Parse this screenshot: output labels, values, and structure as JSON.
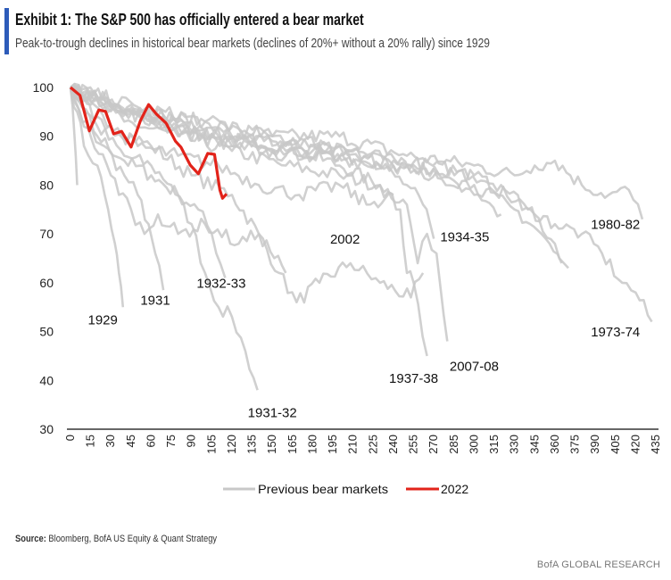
{
  "header": {
    "title": "Exhibit 1: The S&P 500 has officially entered a bear market",
    "subtitle": "Peak-to-trough declines in historical bear markets (declines of 20%+ without a 20% rally) since 1929"
  },
  "footer": {
    "source_label": "Source:",
    "source_text": " Bloomberg, BofA US Equity & Quant Strategy",
    "brand": "BofA GLOBAL RESEARCH"
  },
  "colors": {
    "accent": "#2d5bb9",
    "previous": "#c8c8c8",
    "current": "#e2231a",
    "axis": "#666666"
  },
  "chart_data": {
    "type": "line",
    "title": "Exhibit 1: The S&P 500 has officially entered a bear market",
    "xlabel": "",
    "ylabel": "",
    "xlim": [
      0,
      435
    ],
    "ylim": [
      30,
      100
    ],
    "x_ticks": [
      "0",
      "15",
      "30",
      "45",
      "60",
      "75",
      "90",
      "105",
      "120",
      "135",
      "150",
      "165",
      "180",
      "195",
      "210",
      "225",
      "240",
      "255",
      "270",
      "285",
      "300",
      "315",
      "330",
      "345",
      "360",
      "375",
      "390",
      "405",
      "420",
      "435"
    ],
    "y_ticks": [
      "30",
      "40",
      "50",
      "60",
      "70",
      "80",
      "90",
      "100"
    ],
    "grid": false,
    "legend": {
      "position": "bottom",
      "entries": [
        {
          "label": "Previous bear markets",
          "color": "#c8c8c8"
        },
        {
          "label": "2022",
          "color": "#e2231a"
        }
      ]
    },
    "series": [
      {
        "name": "1929",
        "group": "previous",
        "label": "1929",
        "label_at": [
          24,
          51.5
        ],
        "points": [
          [
            0,
            100
          ],
          [
            5,
            95
          ],
          [
            10,
            88
          ],
          [
            20,
            84
          ],
          [
            28,
            75
          ],
          [
            33,
            68
          ],
          [
            36,
            62
          ],
          [
            39,
            55
          ]
        ]
      },
      {
        "name": "1931",
        "group": "previous",
        "label": "1931",
        "label_at": [
          63,
          55.5
        ],
        "points": [
          [
            0,
            100
          ],
          [
            10,
            92
          ],
          [
            25,
            88
          ],
          [
            40,
            82
          ],
          [
            50,
            78
          ],
          [
            58,
            72
          ],
          [
            63,
            66
          ],
          [
            69,
            58.5
          ]
        ]
      },
      {
        "name": "1932-33",
        "group": "previous",
        "label": "1932-33",
        "label_at": [
          112,
          59
        ],
        "points": [
          [
            0,
            100
          ],
          [
            20,
            90
          ],
          [
            40,
            85
          ],
          [
            60,
            82
          ],
          [
            80,
            78
          ],
          [
            95,
            75
          ],
          [
            105,
            70
          ],
          [
            115,
            61
          ]
        ]
      },
      {
        "name": "1931-32",
        "group": "previous",
        "label": "1931-32",
        "label_at": [
          150,
          32.5
        ],
        "points": [
          [
            0,
            100
          ],
          [
            20,
            92
          ],
          [
            40,
            86
          ],
          [
            60,
            84
          ],
          [
            75,
            80
          ],
          [
            90,
            72
          ],
          [
            100,
            62
          ],
          [
            110,
            55
          ],
          [
            120,
            53
          ],
          [
            130,
            46
          ],
          [
            139,
            38
          ]
        ]
      },
      {
        "name": "2002",
        "group": "previous",
        "label": "2002",
        "label_at": [
          204,
          68
        ],
        "points": [
          [
            0,
            100
          ],
          [
            30,
            92
          ],
          [
            60,
            88
          ],
          [
            90,
            82
          ],
          [
            120,
            78
          ],
          [
            140,
            70
          ],
          [
            155,
            62
          ],
          [
            168,
            56
          ],
          [
            185,
            60
          ],
          [
            208,
            64
          ],
          [
            230,
            60
          ],
          [
            253,
            57
          ],
          [
            262,
            62
          ]
        ]
      },
      {
        "name": "2007-08",
        "group": "previous",
        "label": "2007-08",
        "label_at": [
          300,
          42
        ],
        "points": [
          [
            0,
            100
          ],
          [
            40,
            95
          ],
          [
            80,
            92
          ],
          [
            120,
            90
          ],
          [
            160,
            88
          ],
          [
            200,
            84
          ],
          [
            230,
            80
          ],
          [
            250,
            76
          ],
          [
            258,
            64
          ],
          [
            265,
            70
          ],
          [
            272,
            66
          ],
          [
            280,
            48
          ]
        ]
      },
      {
        "name": "1937-38",
        "group": "previous",
        "label": "1937-38",
        "label_at": [
          255,
          39.5
        ],
        "points": [
          [
            0,
            100
          ],
          [
            40,
            93
          ],
          [
            80,
            90
          ],
          [
            120,
            87
          ],
          [
            160,
            84
          ],
          [
            200,
            82
          ],
          [
            230,
            80
          ],
          [
            245,
            75
          ],
          [
            250,
            62
          ],
          [
            255,
            60
          ],
          [
            265,
            45
          ]
        ]
      },
      {
        "name": "1934-35",
        "group": "previous",
        "label": "1934-35",
        "label_at": [
          293,
          68.5
        ],
        "points": [
          [
            0,
            100
          ],
          [
            40,
            95
          ],
          [
            80,
            92
          ],
          [
            120,
            88
          ],
          [
            160,
            86
          ],
          [
            200,
            88
          ],
          [
            230,
            84
          ],
          [
            250,
            80
          ],
          [
            262,
            76
          ],
          [
            270,
            69
          ]
        ]
      },
      {
        "name": "1980-82",
        "group": "previous",
        "label": "1980-82",
        "label_at": [
          405,
          71
        ],
        "points": [
          [
            0,
            100
          ],
          [
            50,
            95
          ],
          [
            100,
            93
          ],
          [
            150,
            90
          ],
          [
            200,
            90
          ],
          [
            250,
            86
          ],
          [
            300,
            84
          ],
          [
            330,
            82
          ],
          [
            345,
            84
          ],
          [
            360,
            85
          ],
          [
            380,
            80
          ],
          [
            400,
            78
          ],
          [
            415,
            79
          ],
          [
            425,
            73
          ]
        ]
      },
      {
        "name": "1973-74",
        "group": "previous",
        "label": "1973-74",
        "label_at": [
          405,
          49
        ],
        "points": [
          [
            0,
            100
          ],
          [
            50,
            96
          ],
          [
            100,
            93
          ],
          [
            150,
            90
          ],
          [
            200,
            88
          ],
          [
            250,
            84
          ],
          [
            300,
            82
          ],
          [
            340,
            75
          ],
          [
            360,
            72
          ],
          [
            380,
            70
          ],
          [
            395,
            66
          ],
          [
            410,
            60
          ],
          [
            420,
            58
          ],
          [
            432,
            52
          ]
        ]
      },
      {
        "name": "previous-a",
        "group": "previous",
        "points": [
          [
            0,
            100
          ],
          [
            60,
            94
          ],
          [
            120,
            90
          ],
          [
            180,
            88
          ],
          [
            240,
            85
          ],
          [
            290,
            83
          ],
          [
            320,
            80
          ],
          [
            345,
            74
          ],
          [
            360,
            68
          ],
          [
            370,
            63
          ]
        ]
      },
      {
        "name": "previous-b",
        "group": "previous",
        "points": [
          [
            0,
            100
          ],
          [
            80,
            92
          ],
          [
            160,
            87
          ],
          [
            240,
            84
          ],
          [
            300,
            80
          ],
          [
            330,
            75
          ],
          [
            350,
            70
          ],
          [
            365,
            64
          ]
        ]
      },
      {
        "name": "previous-c",
        "group": "previous",
        "points": [
          [
            0,
            100
          ],
          [
            60,
            93
          ],
          [
            120,
            88
          ],
          [
            200,
            86
          ],
          [
            260,
            83
          ],
          [
            300,
            78
          ],
          [
            320,
            74
          ]
        ]
      },
      {
        "name": "previous-d",
        "group": "previous",
        "points": [
          [
            0,
            100
          ],
          [
            3,
            90
          ],
          [
            5,
            80
          ]
        ]
      },
      {
        "name": "previous-e",
        "group": "previous",
        "points": [
          [
            0,
            100
          ],
          [
            15,
            90
          ],
          [
            30,
            82
          ],
          [
            45,
            75
          ],
          [
            55,
            70
          ],
          [
            65,
            74
          ],
          [
            80,
            70
          ],
          [
            100,
            72
          ],
          [
            125,
            68
          ],
          [
            140,
            70
          ],
          [
            160,
            62
          ]
        ]
      },
      {
        "name": "previous-f",
        "group": "previous",
        "points": [
          [
            0,
            100
          ],
          [
            20,
            94
          ],
          [
            50,
            88
          ],
          [
            80,
            86
          ],
          [
            110,
            84
          ],
          [
            140,
            80
          ],
          [
            170,
            78
          ],
          [
            200,
            80
          ],
          [
            220,
            76
          ],
          [
            240,
            78
          ]
        ]
      },
      {
        "name": "previous-g",
        "group": "previous",
        "points": [
          [
            0,
            100
          ],
          [
            30,
            96
          ],
          [
            70,
            94
          ],
          [
            110,
            90
          ],
          [
            150,
            89
          ],
          [
            190,
            87
          ],
          [
            210,
            84
          ]
        ]
      },
      {
        "name": "2022",
        "group": "current",
        "points": [
          [
            0,
            100
          ],
          [
            7,
            98.4
          ],
          [
            14,
            91.1
          ],
          [
            21,
            95.4
          ],
          [
            26,
            95.1
          ],
          [
            32,
            90.5
          ],
          [
            38,
            91
          ],
          [
            45,
            87.8
          ],
          [
            52,
            93.2
          ],
          [
            58,
            96.5
          ],
          [
            64,
            94.5
          ],
          [
            71,
            92.7
          ],
          [
            78,
            89
          ],
          [
            82,
            87.8
          ],
          [
            89,
            84.1
          ],
          [
            95,
            82.3
          ],
          [
            102,
            86.5
          ],
          [
            107,
            86.3
          ],
          [
            111,
            79
          ],
          [
            113,
            77.3
          ],
          [
            116,
            78.2
          ]
        ]
      }
    ]
  }
}
